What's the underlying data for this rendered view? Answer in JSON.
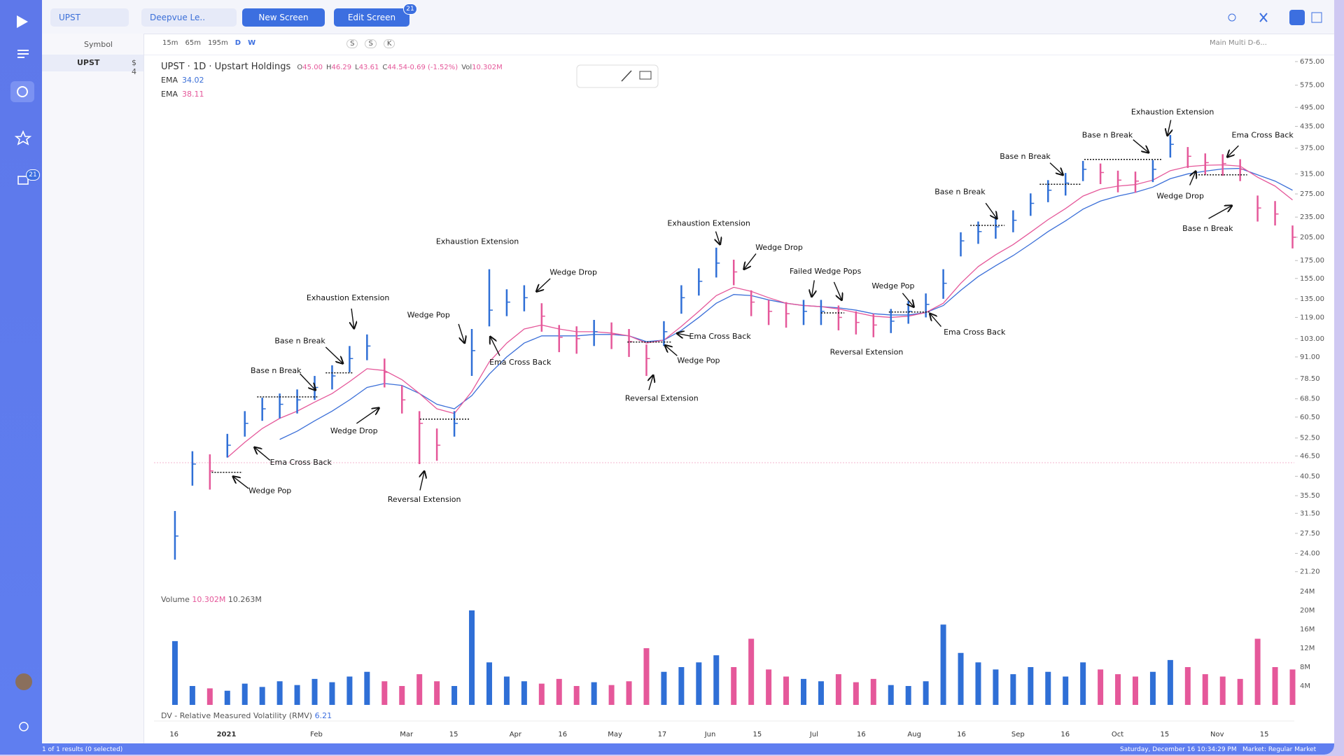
{
  "tabs": [
    {
      "label": "UPST"
    },
    {
      "label": "Deepvue Le.."
    }
  ],
  "buttons": {
    "new_screen": "New Screen",
    "edit_screen": "Edit Screen",
    "edit_badge": 21
  },
  "sidebar": {
    "badge": 21
  },
  "watchlist": {
    "header": "Symbol",
    "rows": [
      {
        "symbol": "UPST",
        "price": "$ 4"
      }
    ]
  },
  "toolbar": {
    "intervals": [
      "15m",
      "65m",
      "195m",
      "D",
      "W"
    ],
    "chips": [
      "S",
      "S",
      "K"
    ],
    "layout": "Main Multi D-6..."
  },
  "indicator": {
    "title": "DV - Relative Measured Volatility (RMV)",
    "value": 6.21
  },
  "status": {
    "results": "1 of 1 results (0 selected)",
    "datetime": "Saturday, December 16 10:34:29 PM",
    "market": "Market: Regular Market"
  },
  "chart_data": [
    {
      "type": "ohlc",
      "title": "UPST · 1D · Upstart Holdings",
      "stats": [
        {
          "name": "O",
          "value": 45,
          "label": "45.00"
        },
        {
          "name": "H",
          "value": 46.29,
          "label": "46.29"
        },
        {
          "name": "L",
          "value": 43.61,
          "label": "43.61"
        },
        {
          "name": "C",
          "value": 44.54,
          "label": "44.54"
        },
        {
          "name": "",
          "value": -0.69,
          "label": "-0.69 (-1.52%)"
        },
        {
          "name": "Vol",
          "value": 10302000,
          "label": "10.302M"
        }
      ],
      "up_color": "#2f6fd6",
      "down_color": "#e5589a",
      "log_scale": true,
      "high": [
        32,
        48,
        47,
        54,
        63,
        69,
        71,
        73,
        80,
        86,
        98,
        106,
        90,
        75,
        63,
        56,
        63,
        110,
        165,
        144,
        148,
        131,
        113,
        112,
        117,
        115,
        110,
        99,
        116,
        148,
        166,
        191,
        176,
        143,
        134,
        132,
        134,
        134,
        129,
        124,
        122,
        126,
        133,
        140,
        165,
        212,
        228,
        236,
        246,
        276,
        302,
        317,
        344,
        338,
        322,
        320,
        346,
        410,
        378,
        362,
        360,
        348,
        272,
        262,
        222
      ],
      "low": [
        23,
        38,
        37,
        46,
        53,
        59,
        60,
        62,
        68,
        73,
        82,
        89,
        74,
        62,
        44,
        45,
        53,
        80,
        112,
        120,
        124,
        108,
        94,
        93,
        98,
        96,
        91,
        80,
        98,
        122,
        138,
        156,
        148,
        120,
        113,
        111,
        113,
        113,
        109,
        106,
        104,
        107,
        114,
        119,
        135,
        180,
        196,
        203,
        212,
        237,
        260,
        272,
        300,
        294,
        278,
        277,
        298,
        352,
        328,
        313,
        311,
        300,
        228,
        222,
        190
      ],
      "close": [
        27,
        44,
        42,
        50,
        58,
        64,
        66,
        68,
        74,
        80,
        90,
        98,
        82,
        68,
        58,
        50,
        58,
        95,
        125,
        132,
        136,
        120,
        104,
        103,
        108,
        106,
        101,
        90,
        108,
        136,
        152,
        172,
        162,
        132,
        124,
        122,
        124,
        124,
        119,
        115,
        113,
        116,
        124,
        130,
        150,
        200,
        213,
        220,
        230,
        258,
        282,
        296,
        325,
        318,
        302,
        300,
        325,
        385,
        355,
        340,
        338,
        325,
        250,
        240,
        205
      ],
      "series": [
        {
          "name": "EMA",
          "color": "#3b6fd8",
          "last": 34.02,
          "values": [
            null,
            null,
            null,
            null,
            null,
            null,
            52,
            55,
            59,
            63,
            68,
            74,
            76,
            75,
            71,
            66,
            64,
            70,
            81,
            91,
            100,
            105,
            105,
            105,
            106,
            106,
            105,
            101,
            102,
            109,
            119,
            131,
            139,
            138,
            134,
            131,
            129,
            128,
            127,
            125,
            122,
            121,
            121,
            123,
            129,
            143,
            157,
            169,
            181,
            196,
            213,
            229,
            248,
            262,
            271,
            278,
            288,
            305,
            315,
            321,
            326,
            327,
            313,
            300,
            282
          ]
        },
        {
          "name": "EMA",
          "color": "#e5589a",
          "last": 38.11,
          "values": [
            null,
            null,
            null,
            46,
            51,
            56,
            60,
            63,
            67,
            71,
            77,
            84,
            83,
            78,
            71,
            64,
            62,
            72,
            88,
            100,
            110,
            113,
            110,
            108,
            108,
            107,
            105,
            100,
            102,
            112,
            124,
            138,
            146,
            142,
            136,
            131,
            129,
            128,
            126,
            123,
            120,
            119,
            120,
            123,
            131,
            150,
            168,
            182,
            195,
            212,
            231,
            249,
            271,
            284,
            290,
            293,
            302,
            322,
            331,
            334,
            335,
            332,
            308,
            290,
            264
          ]
        }
      ],
      "ylim": [
        18.8,
        701
      ],
      "yticks": [
        {
          "value": 675,
          "label": "675.00"
        },
        {
          "value": 575,
          "label": "575.00"
        },
        {
          "value": 495,
          "label": "495.00"
        },
        {
          "value": 435,
          "label": "435.00"
        },
        {
          "value": 375,
          "label": "375.00"
        },
        {
          "value": 315,
          "label": "315.00"
        },
        {
          "value": 275,
          "label": "275.00"
        },
        {
          "value": 235,
          "label": "235.00"
        },
        {
          "value": 205,
          "label": "205.00"
        },
        {
          "value": 175,
          "label": "175.00"
        },
        {
          "value": 155,
          "label": "155.00"
        },
        {
          "value": 135,
          "label": "135.00"
        },
        {
          "value": 119,
          "label": "119.00"
        },
        {
          "value": 103,
          "label": "103.00"
        },
        {
          "value": 91,
          "label": "91.00"
        },
        {
          "value": 78.5,
          "label": "78.50"
        },
        {
          "value": 68.5,
          "label": "68.50"
        },
        {
          "value": 60.5,
          "label": "60.50"
        },
        {
          "value": 52.5,
          "label": "52.50"
        },
        {
          "value": 46.5,
          "label": "46.50"
        },
        {
          "value": 40.5,
          "label": "40.50"
        },
        {
          "value": 35.5,
          "label": "35.50"
        },
        {
          "value": 31.5,
          "label": "31.50"
        },
        {
          "value": 27.5,
          "label": "27.50"
        },
        {
          "value": 24,
          "label": "24.00"
        },
        {
          "value": 21.2,
          "label": "21.20"
        }
      ],
      "xlim": [
        -1.2,
        64.1
      ],
      "xticks": [
        {
          "value": -0.05,
          "label": "16"
        },
        {
          "value": 2.95,
          "label": "2021"
        },
        {
          "value": 8.1,
          "label": "Feb"
        },
        {
          "value": 13.26,
          "label": "Mar"
        },
        {
          "value": 15.96,
          "label": "15"
        },
        {
          "value": 19.5,
          "label": "Apr"
        },
        {
          "value": 22.2,
          "label": "16"
        },
        {
          "value": 25.2,
          "label": "May"
        },
        {
          "value": 27.9,
          "label": "17"
        },
        {
          "value": 30.65,
          "label": "Jun"
        },
        {
          "value": 33.35,
          "label": "15"
        },
        {
          "value": 36.6,
          "label": "Jul"
        },
        {
          "value": 39.3,
          "label": "16"
        },
        {
          "value": 42.34,
          "label": "Aug"
        },
        {
          "value": 45.04,
          "label": "16"
        },
        {
          "value": 48.28,
          "label": "Sep"
        },
        {
          "value": 50.98,
          "label": "16"
        },
        {
          "value": 53.98,
          "label": "Oct"
        },
        {
          "value": 56.68,
          "label": "15"
        },
        {
          "value": 59.68,
          "label": "Nov"
        },
        {
          "value": 62.38,
          "label": "15"
        }
      ],
      "annotations": [
        "Wedge Pop",
        "Ema Cross Back",
        "Base n Break",
        "Base n Break",
        "Exhaustion Extension",
        "Wedge Drop",
        "Reversal Extension",
        "Wedge Pop",
        "Exhaustion Extension",
        "Ema Cross Back",
        "Wedge Drop",
        "Exhaustion Extension",
        "Wedge Drop",
        "Ema Cross Back",
        "Wedge Pop",
        "Reversal Extension",
        "Failed Wedge Pops",
        "Reversal Extension",
        "Wedge Pop",
        "Ema Cross Back",
        "Base n Break",
        "Base n Break",
        "Base n Break",
        "Exhaustion Extension",
        "Ema Cross Back",
        "Wedge Drop",
        "Base n Break"
      ]
    },
    {
      "type": "bar",
      "title": "Volume",
      "stats": [
        {
          "value": 10302000,
          "label": "10.302M"
        },
        {
          "value": 10263000,
          "label": "10.263M"
        }
      ],
      "values": [
        13500000,
        4000000,
        3500000,
        3000000,
        4500000,
        3800000,
        5000000,
        4200000,
        5500000,
        4800000,
        6000000,
        7000000,
        5000000,
        4000000,
        6500000,
        5000000,
        4000000,
        20000000,
        9000000,
        6000000,
        5000000,
        4500000,
        5500000,
        4000000,
        4800000,
        4200000,
        5000000,
        12000000,
        7000000,
        8000000,
        9000000,
        10500000,
        8000000,
        14000000,
        7500000,
        6000000,
        5500000,
        5000000,
        6500000,
        4800000,
        5500000,
        4200000,
        4000000,
        5000000,
        17000000,
        11000000,
        9000000,
        7500000,
        6500000,
        8000000,
        7000000,
        6000000,
        9000000,
        7500000,
        6500000,
        6000000,
        7000000,
        9500000,
        8000000,
        6500000,
        6000000,
        5500000,
        14000000,
        8000000,
        7500000
      ],
      "ylim": [
        0,
        24000000
      ],
      "yticks": [
        {
          "value": 24000000,
          "label": "24M"
        },
        {
          "value": 20000000,
          "label": "20M"
        },
        {
          "value": 16000000,
          "label": "16M"
        },
        {
          "value": 12000000,
          "label": "12M"
        },
        {
          "value": 8000000,
          "label": "8M"
        },
        {
          "value": 4000000,
          "label": "4M"
        }
      ]
    }
  ]
}
